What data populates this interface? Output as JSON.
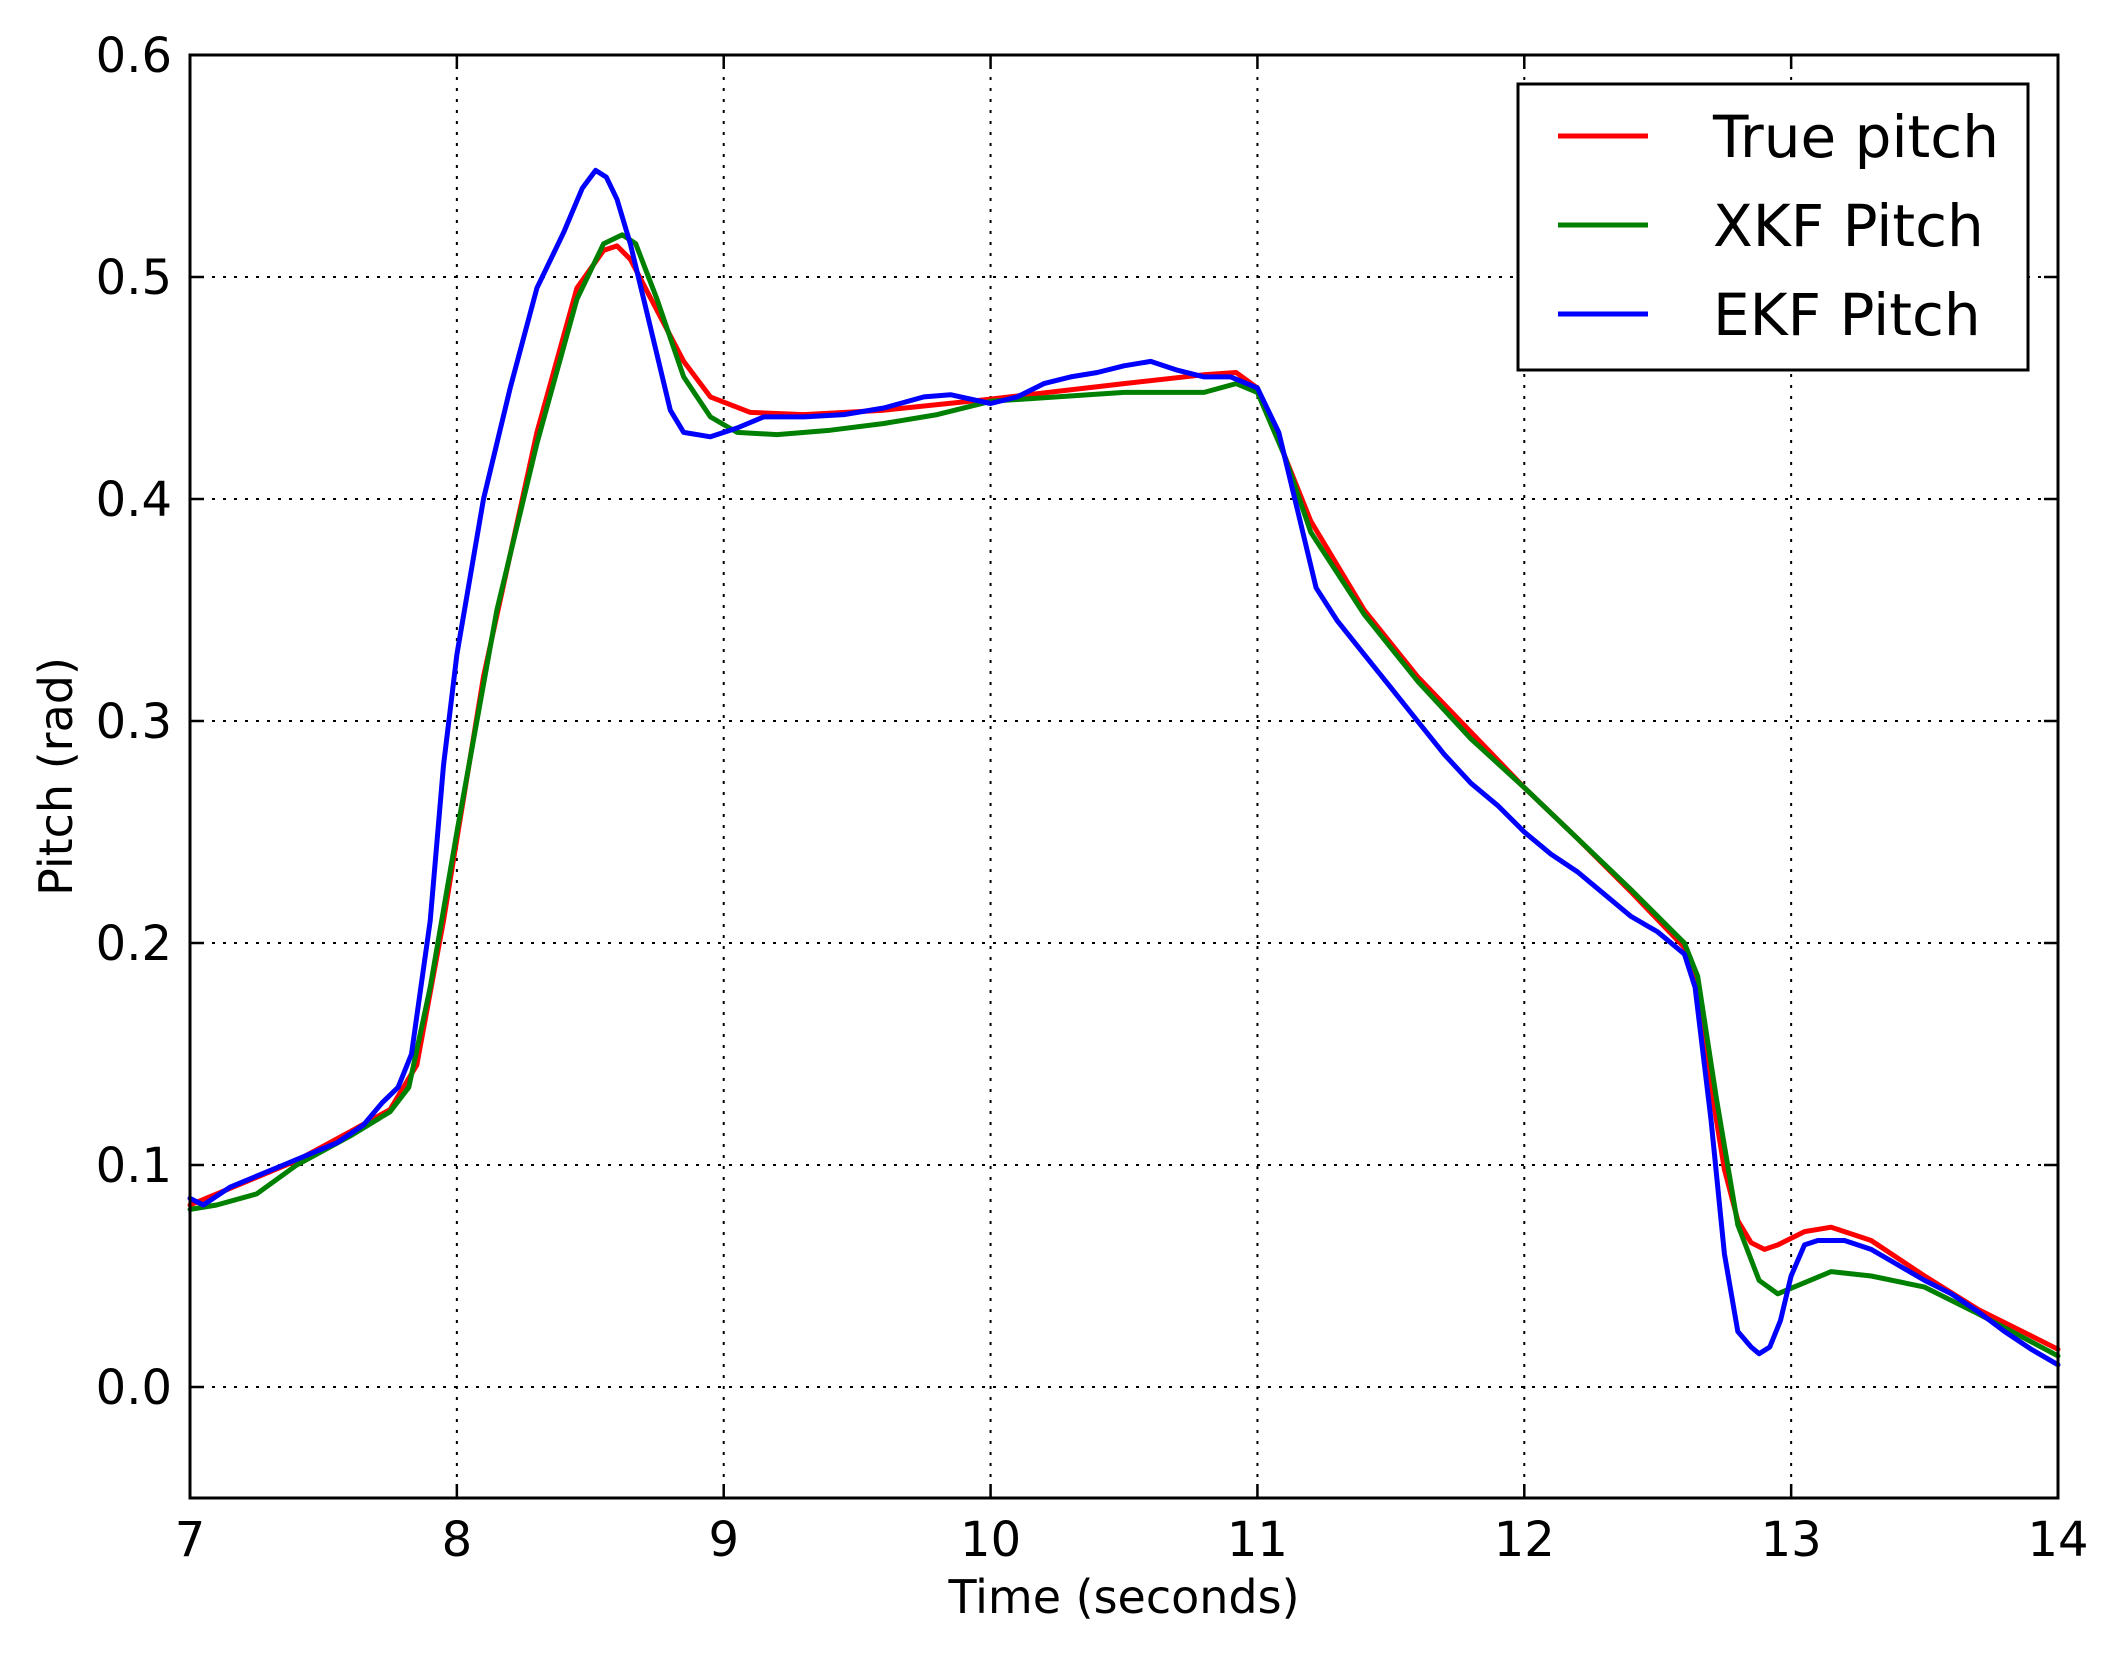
{
  "chart_data": {
    "type": "line",
    "title": "",
    "xlabel": "Time (seconds)",
    "ylabel": "Pitch (rad)",
    "xlim": [
      7,
      14
    ],
    "ylim": [
      -0.05,
      0.6
    ],
    "xticks": [
      7,
      8,
      9,
      10,
      11,
      12,
      13,
      14
    ],
    "xtick_labels": [
      "7",
      "8",
      "9",
      "10",
      "11",
      "12",
      "13",
      "14"
    ],
    "yticks": [
      0.0,
      0.1,
      0.2,
      0.3,
      0.4,
      0.5,
      0.6
    ],
    "ytick_labels": [
      "0.0",
      "0.1",
      "0.2",
      "0.3",
      "0.4",
      "0.5",
      "0.6"
    ],
    "grid": true,
    "legend_position": "top-right",
    "series": [
      {
        "name": "True pitch",
        "color": "#ff0000",
        "x": [
          7.0,
          7.2,
          7.4,
          7.6,
          7.75,
          7.85,
          7.95,
          8.1,
          8.3,
          8.45,
          8.55,
          8.6,
          8.65,
          8.75,
          8.85,
          8.95,
          9.1,
          9.3,
          9.6,
          10.0,
          10.5,
          10.8,
          10.92,
          11.0,
          11.1,
          11.2,
          11.4,
          11.6,
          11.8,
          12.0,
          12.2,
          12.4,
          12.6,
          12.65,
          12.7,
          12.75,
          12.8,
          12.85,
          12.9,
          12.95,
          13.05,
          13.15,
          13.3,
          13.5,
          13.7,
          14.0
        ],
        "y": [
          0.082,
          0.092,
          0.102,
          0.115,
          0.125,
          0.145,
          0.21,
          0.32,
          0.43,
          0.495,
          0.512,
          0.514,
          0.508,
          0.485,
          0.462,
          0.446,
          0.439,
          0.438,
          0.44,
          0.445,
          0.452,
          0.456,
          0.457,
          0.45,
          0.42,
          0.39,
          0.35,
          0.32,
          0.295,
          0.27,
          0.247,
          0.223,
          0.198,
          0.18,
          0.135,
          0.098,
          0.075,
          0.065,
          0.062,
          0.064,
          0.07,
          0.072,
          0.066,
          0.05,
          0.035,
          0.017
        ]
      },
      {
        "name": "XKF Pitch",
        "color": "#008000",
        "x": [
          7.0,
          7.1,
          7.25,
          7.4,
          7.6,
          7.75,
          7.82,
          7.9,
          8.0,
          8.15,
          8.3,
          8.45,
          8.55,
          8.62,
          8.67,
          8.75,
          8.85,
          8.95,
          9.05,
          9.2,
          9.4,
          9.6,
          9.8,
          10.0,
          10.5,
          10.8,
          10.92,
          11.0,
          11.1,
          11.2,
          11.4,
          11.6,
          11.8,
          12.0,
          12.2,
          12.4,
          12.6,
          12.65,
          12.72,
          12.8,
          12.88,
          12.95,
          13.05,
          13.15,
          13.3,
          13.5,
          13.7,
          14.0
        ],
        "y": [
          0.08,
          0.082,
          0.087,
          0.1,
          0.113,
          0.124,
          0.135,
          0.18,
          0.25,
          0.35,
          0.425,
          0.49,
          0.515,
          0.519,
          0.515,
          0.49,
          0.455,
          0.437,
          0.43,
          0.429,
          0.431,
          0.434,
          0.438,
          0.444,
          0.448,
          0.448,
          0.452,
          0.448,
          0.42,
          0.385,
          0.348,
          0.318,
          0.292,
          0.27,
          0.247,
          0.224,
          0.2,
          0.185,
          0.13,
          0.073,
          0.048,
          0.042,
          0.047,
          0.052,
          0.05,
          0.045,
          0.033,
          0.014
        ]
      },
      {
        "name": "EKF Pitch",
        "color": "#0000ff",
        "x": [
          7.0,
          7.05,
          7.15,
          7.25,
          7.35,
          7.45,
          7.55,
          7.65,
          7.72,
          7.78,
          7.83,
          7.9,
          7.95,
          8.0,
          8.1,
          8.2,
          8.3,
          8.4,
          8.47,
          8.52,
          8.56,
          8.6,
          8.65,
          8.7,
          8.75,
          8.8,
          8.85,
          8.95,
          9.05,
          9.15,
          9.3,
          9.45,
          9.6,
          9.75,
          9.85,
          10.0,
          10.1,
          10.2,
          10.3,
          10.4,
          10.5,
          10.6,
          10.7,
          10.8,
          10.9,
          11.0,
          11.08,
          11.15,
          11.22,
          11.3,
          11.4,
          11.5,
          11.6,
          11.7,
          11.8,
          11.9,
          12.0,
          12.1,
          12.2,
          12.3,
          12.4,
          12.5,
          12.6,
          12.64,
          12.7,
          12.75,
          12.8,
          12.85,
          12.88,
          12.92,
          12.96,
          13.0,
          13.05,
          13.1,
          13.2,
          13.3,
          13.4,
          13.5,
          13.6,
          13.7,
          13.8,
          13.9,
          14.0
        ],
        "y": [
          0.085,
          0.082,
          0.09,
          0.095,
          0.1,
          0.105,
          0.11,
          0.118,
          0.128,
          0.135,
          0.15,
          0.21,
          0.28,
          0.33,
          0.4,
          0.45,
          0.495,
          0.52,
          0.54,
          0.548,
          0.545,
          0.535,
          0.515,
          0.49,
          0.465,
          0.44,
          0.43,
          0.428,
          0.432,
          0.437,
          0.437,
          0.438,
          0.441,
          0.446,
          0.447,
          0.443,
          0.446,
          0.452,
          0.455,
          0.457,
          0.46,
          0.462,
          0.458,
          0.455,
          0.455,
          0.45,
          0.43,
          0.395,
          0.36,
          0.345,
          0.33,
          0.315,
          0.3,
          0.285,
          0.272,
          0.262,
          0.25,
          0.24,
          0.232,
          0.222,
          0.212,
          0.205,
          0.195,
          0.18,
          0.12,
          0.06,
          0.025,
          0.018,
          0.015,
          0.018,
          0.03,
          0.05,
          0.064,
          0.066,
          0.066,
          0.062,
          0.055,
          0.048,
          0.042,
          0.034,
          0.025,
          0.017,
          0.01
        ]
      }
    ]
  }
}
